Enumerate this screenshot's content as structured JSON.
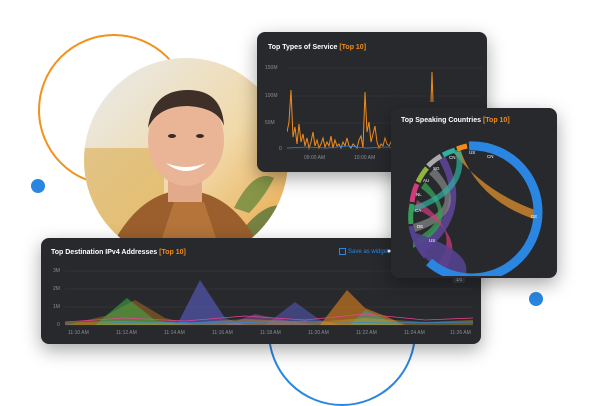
{
  "colors": {
    "accent": "#f28b1b",
    "brand_blue": "#2a86e0",
    "panel_bg": "#27292d"
  },
  "service_panel": {
    "title": "Top Types of Service",
    "tag": "[Top 10]",
    "y_ticks": [
      "150M",
      "100M",
      "50M",
      "0"
    ],
    "x_ticks": [
      "09:00 AM",
      "10:00 AM"
    ]
  },
  "countries_panel": {
    "title": "Top Speaking Countries",
    "tag": "[Top 10]",
    "chord_labels": [
      "US",
      "CN",
      "SG",
      "AU",
      "NL",
      "CA",
      "DE",
      "US",
      "DE",
      "CN"
    ]
  },
  "ipv4_panel": {
    "title": "Top Destination IPv4 Addresses",
    "tag": "[Top 10]",
    "save_label": "Save as widget",
    "y_ticks": [
      "3M",
      "2M",
      "1M",
      "0"
    ],
    "x_ticks": [
      "11:10 AM",
      "11:12 AM",
      "11:14 AM",
      "11:16 AM",
      "11:18 AM",
      "11:20 AM",
      "11:22 AM",
      "11:24 AM",
      "11:26 AM"
    ],
    "legend_box": "1/1"
  }
}
